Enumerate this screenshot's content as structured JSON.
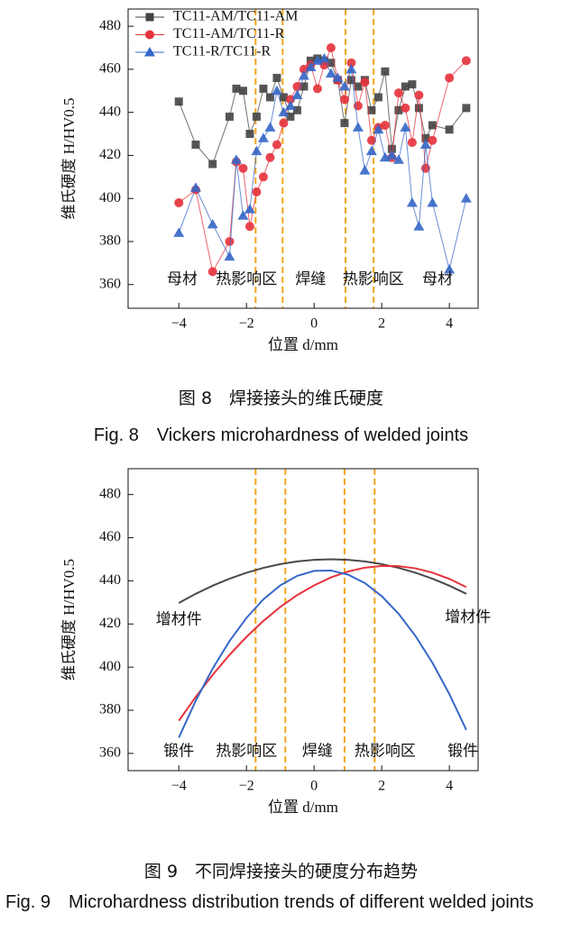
{
  "chart_data": [
    {
      "type": "line",
      "x_label": "位置 d/mm",
      "y_label": "维氏硬度 H/HV0.5",
      "xlim": [
        -5.5,
        4.85
      ],
      "ylim": [
        349,
        488
      ],
      "xticks": [
        {
          "value": -4,
          "label": "−4"
        },
        {
          "value": -2,
          "label": "−2"
        },
        0,
        2,
        4
      ],
      "yticks": [
        360,
        380,
        400,
        420,
        440,
        460,
        480
      ],
      "legend": "upper left",
      "vlines": [
        -1.73,
        -0.93,
        0.93,
        1.76
      ],
      "vline_color": "#f2a51f",
      "annotations": [
        "母材",
        "热影响区",
        "焊缝",
        "热影响区",
        "母材"
      ],
      "x": [
        -4,
        -3.5,
        -3,
        -2.5,
        -2.3,
        -2.1,
        -1.9,
        -1.7,
        -1.5,
        -1.3,
        -1.1,
        -0.9,
        -0.7,
        -0.5,
        -0.3,
        -0.1,
        0.1,
        0.3,
        0.5,
        0.7,
        0.9,
        1.1,
        1.3,
        1.5,
        1.7,
        1.9,
        2.1,
        2.3,
        2.5,
        2.7,
        2.9,
        3.1,
        3.3,
        3.5,
        4,
        4.5
      ],
      "series": [
        {
          "name": "TC11-AM/TC11-AM",
          "color": "#444444",
          "marker": "square",
          "values": [
            445,
            425,
            416,
            438,
            451,
            450,
            430,
            438,
            451,
            447,
            456,
            447,
            438,
            441,
            452,
            464,
            465,
            464,
            463,
            455,
            435,
            455,
            452,
            455,
            441,
            447,
            459,
            423,
            441,
            452,
            453,
            442,
            428,
            434,
            432,
            442
          ]
        },
        {
          "name": "TC11-AM/TC11-R",
          "color": "#e5323c",
          "marker": "circle",
          "values": [
            398,
            404,
            366,
            380,
            417,
            414,
            387,
            403,
            410,
            419,
            425,
            435,
            446,
            452,
            460,
            462,
            451,
            462,
            470,
            455,
            446,
            463,
            443,
            454,
            427,
            433,
            434,
            419,
            449,
            442,
            426,
            448,
            414,
            427,
            456,
            464
          ]
        },
        {
          "name": "TC11-R/TC11-R",
          "color": "#3567c8",
          "marker": "triangle",
          "values": [
            384,
            405,
            388,
            373,
            418,
            392,
            395,
            422,
            428,
            433,
            450,
            440,
            443,
            448,
            457,
            461,
            464,
            465,
            458,
            456,
            452,
            460,
            433,
            413,
            422,
            432,
            419,
            420,
            418,
            433,
            398,
            387,
            425,
            398,
            367,
            400
          ]
        }
      ],
      "caption": "图 8　焊接接头的维氏硬度",
      "caption_en": "Fig. 8　Vickers microhardness of welded joints"
    },
    {
      "type": "line",
      "x_label": "位置 d/mm",
      "y_label": "维氏硬度 H/HV0.5",
      "xlim": [
        -5.5,
        4.85
      ],
      "ylim": [
        352,
        492
      ],
      "xticks": [
        {
          "value": -4,
          "label": "−4"
        },
        {
          "value": -2,
          "label": "−2"
        },
        0,
        2,
        4
      ],
      "yticks": [
        360,
        380,
        400,
        420,
        440,
        460,
        480
      ],
      "vlines": [
        -1.73,
        -0.85,
        0.9,
        1.79
      ],
      "vline_color": "#f2a51f",
      "annotations": [
        "增材件",
        "增材件",
        "锻件",
        "热影响区",
        "焊缝",
        "热影响区",
        "锻件"
      ],
      "x": [
        -4,
        -3.5,
        -3,
        -2.5,
        -2,
        -1.5,
        -1,
        -0.5,
        0,
        0.5,
        1,
        1.5,
        2,
        2.5,
        3,
        3.5,
        4,
        4.5
      ],
      "series": [
        {
          "color": "#4a4a4a",
          "values": [
            429.75,
            434,
            437.75,
            441,
            443.75,
            446,
            447.75,
            449,
            449.75,
            450,
            449.75,
            449,
            447.75,
            446,
            443.75,
            441,
            437.75,
            434
          ]
        },
        {
          "color": "#e5323c",
          "values": [
            375.1,
            386.2,
            396.4,
            405.7,
            414.0,
            421.4,
            427.9,
            433.4,
            437.9,
            441.6,
            444.3,
            446.1,
            446.9,
            446.8,
            445.8,
            443.8,
            440.9,
            437.1
          ]
        },
        {
          "color": "#3567c8",
          "values": [
            367.3,
            384.4,
            399.3,
            412.1,
            422.8,
            431.4,
            437.9,
            442.3,
            444.6,
            444.8,
            442.9,
            439.0,
            432.9,
            424.7,
            414.4,
            402.0,
            387.5,
            370.9
          ]
        }
      ],
      "caption": "图 9　不同焊接接头的硬度分布趋势",
      "caption_en": "Fig. 9　Microhardness distribution trends of different welded joints"
    }
  ]
}
